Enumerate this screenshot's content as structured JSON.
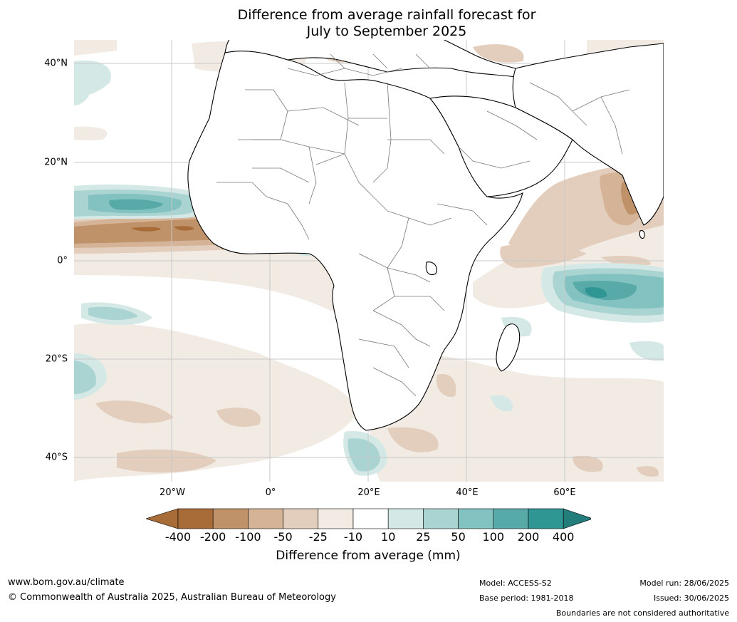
{
  "title": {
    "line1": "Difference from average rainfall forecast for",
    "line2": "July to September 2025"
  },
  "map": {
    "lat_labels": [
      "40°N",
      "20°N",
      "0°",
      "20°S",
      "40°S"
    ],
    "lon_labels": [
      "20°W",
      "0°",
      "20°E",
      "40°E",
      "60°E"
    ],
    "colors": {
      "brown_400": "#a86c38",
      "brown_200": "#c0926a",
      "brown_100": "#d4b396",
      "brown_50": "#e3cebd",
      "brown_25": "#f1ebe4",
      "neutral": "#ffffff",
      "teal_10": "#d4e8e6",
      "teal_25": "#aad4d2",
      "teal_50": "#82c2c0",
      "teal_100": "#58aaa8",
      "teal_200": "#2f9693",
      "teal_400": "#237e7b",
      "border": "#777777",
      "coast": "#000000",
      "grid": "#c8c8c8"
    }
  },
  "colorbar": {
    "ticks": [
      "-400",
      "-200",
      "-100",
      "-50",
      "-25",
      "-10",
      "10",
      "25",
      "50",
      "100",
      "200",
      "400"
    ],
    "label": "Difference from average (mm)",
    "colors": [
      "#a86c38",
      "#a86c38",
      "#c0926a",
      "#d4b396",
      "#e3cebd",
      "#f1ebe4",
      "#ffffff",
      "#d4e8e6",
      "#aad4d2",
      "#82c2c0",
      "#58aaa8",
      "#2f9693",
      "#237e7b"
    ]
  },
  "footer": {
    "website": "www.bom.gov.au/climate",
    "copyright": "© Commonwealth of Australia 2025, Australian Bureau of Meteorology",
    "model": "Model: ACCESS-S2",
    "base_period": "Base period: 1981-2018",
    "model_run": "Model run: 28/06/2025",
    "issued": "Issued: 30/06/2025",
    "disclaimer": "Boundaries are not considered authoritative"
  }
}
